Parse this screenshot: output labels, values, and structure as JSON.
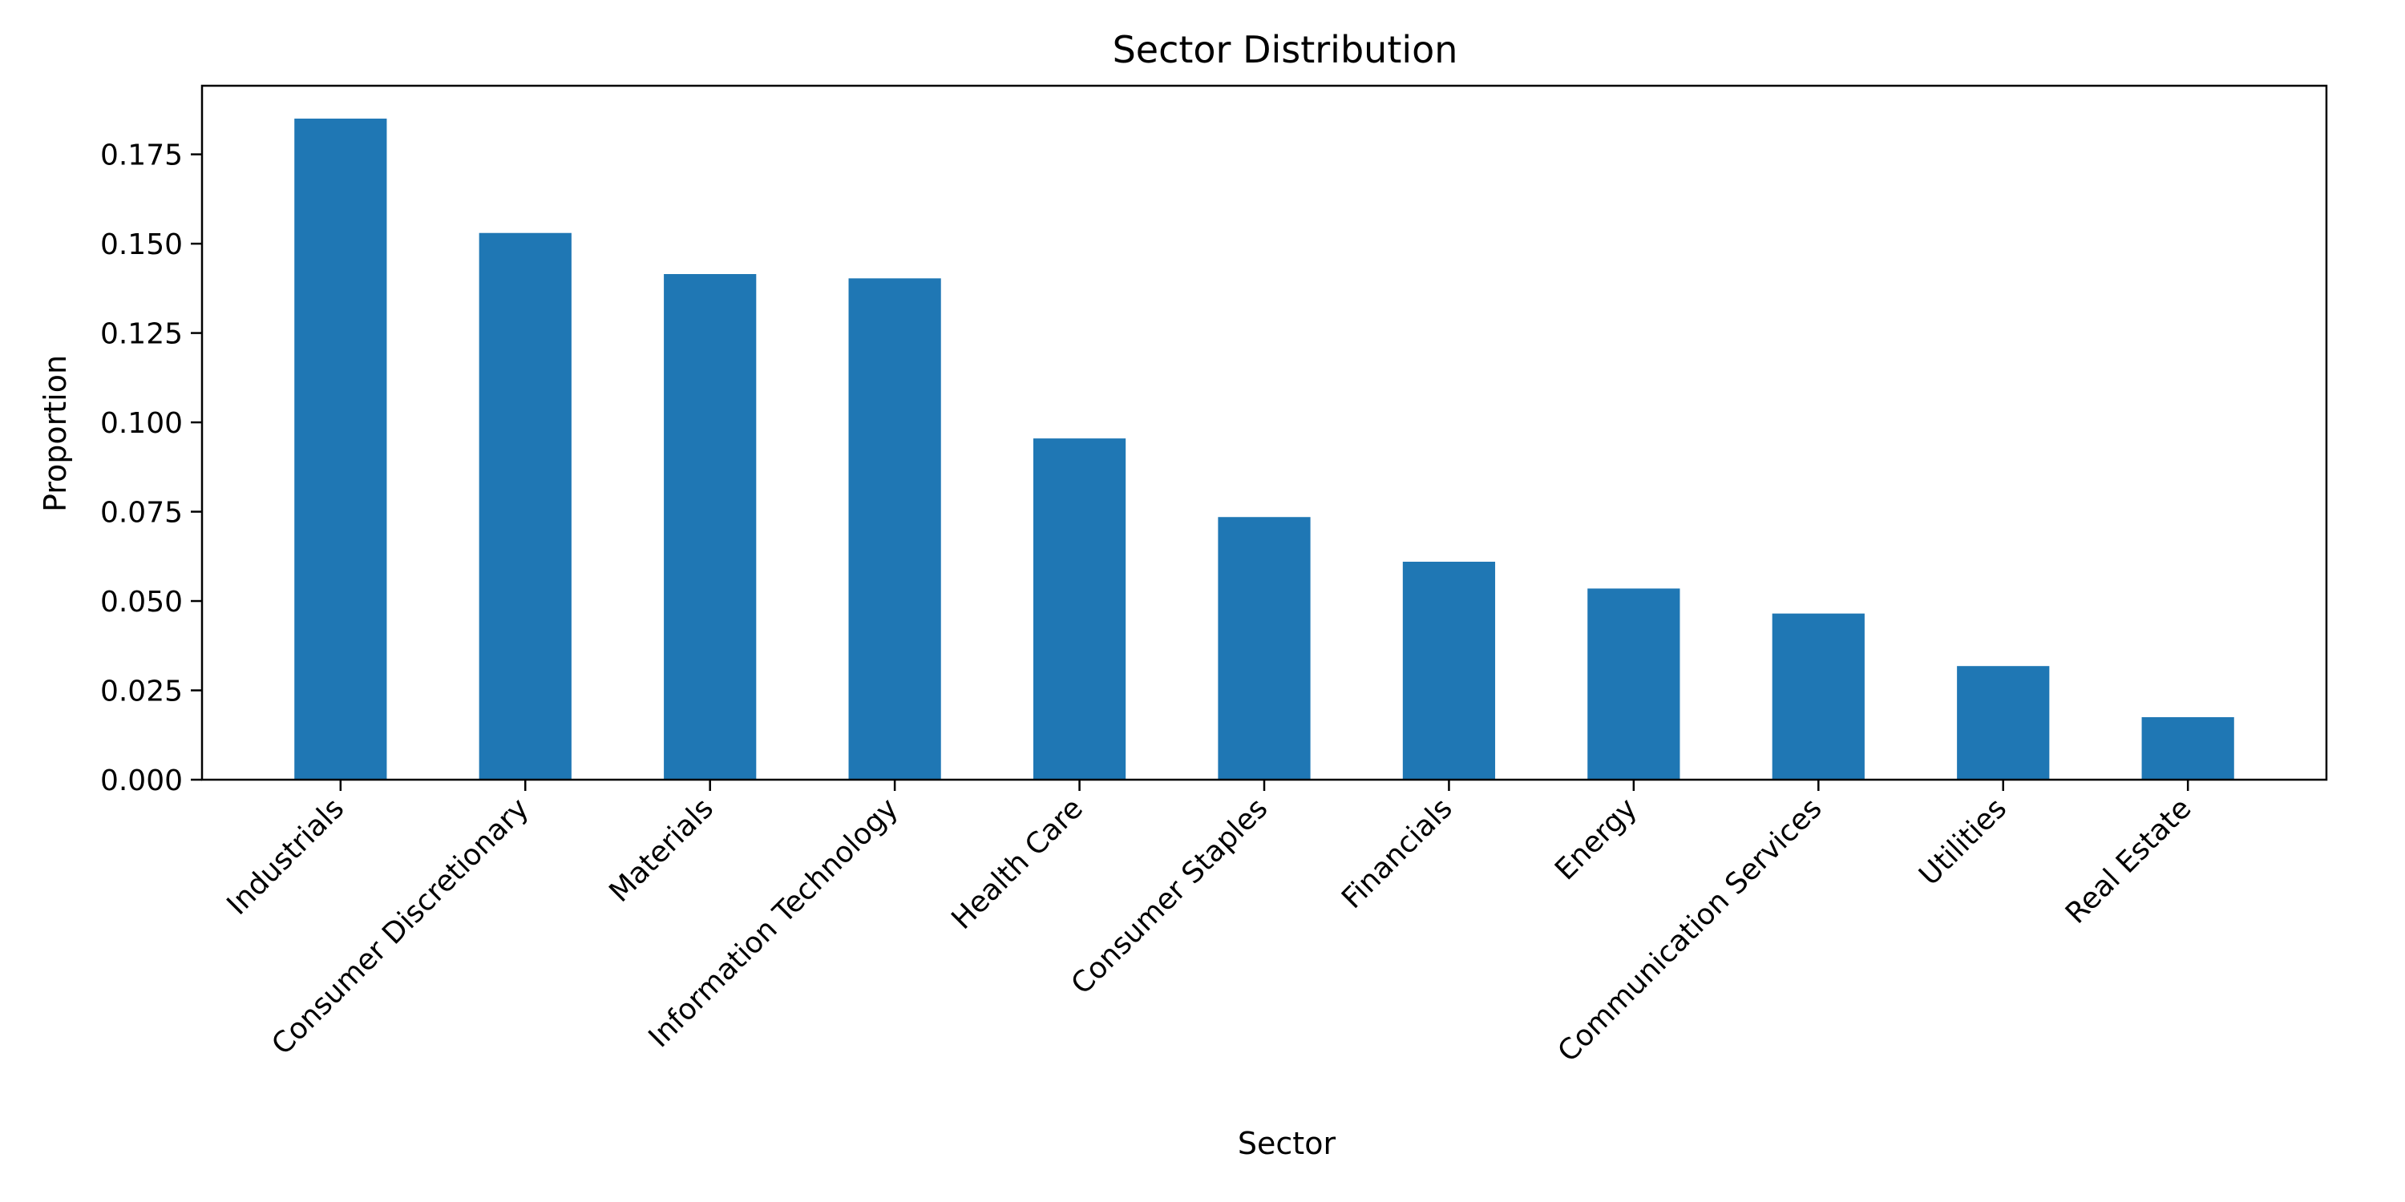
{
  "chart_data": {
    "type": "bar",
    "title": "Sector Distribution",
    "xlabel": "Sector",
    "ylabel": "Proportion",
    "categories": [
      "Industrials",
      "Consumer Discretionary",
      "Materials",
      "Information Technology",
      "Health Care",
      "Consumer Staples",
      "Financials",
      "Energy",
      "Communication Services",
      "Utilities",
      "Real Estate"
    ],
    "values": [
      0.185,
      0.153,
      0.1415,
      0.1403,
      0.0955,
      0.0735,
      0.061,
      0.0535,
      0.0465,
      0.0318,
      0.0175
    ],
    "yticks": [
      "0.000",
      "0.025",
      "0.050",
      "0.075",
      "0.100",
      "0.125",
      "0.150",
      "0.175"
    ],
    "ylim": [
      0,
      0.1942
    ],
    "grid": false,
    "bar_color": "#1f77b4"
  }
}
